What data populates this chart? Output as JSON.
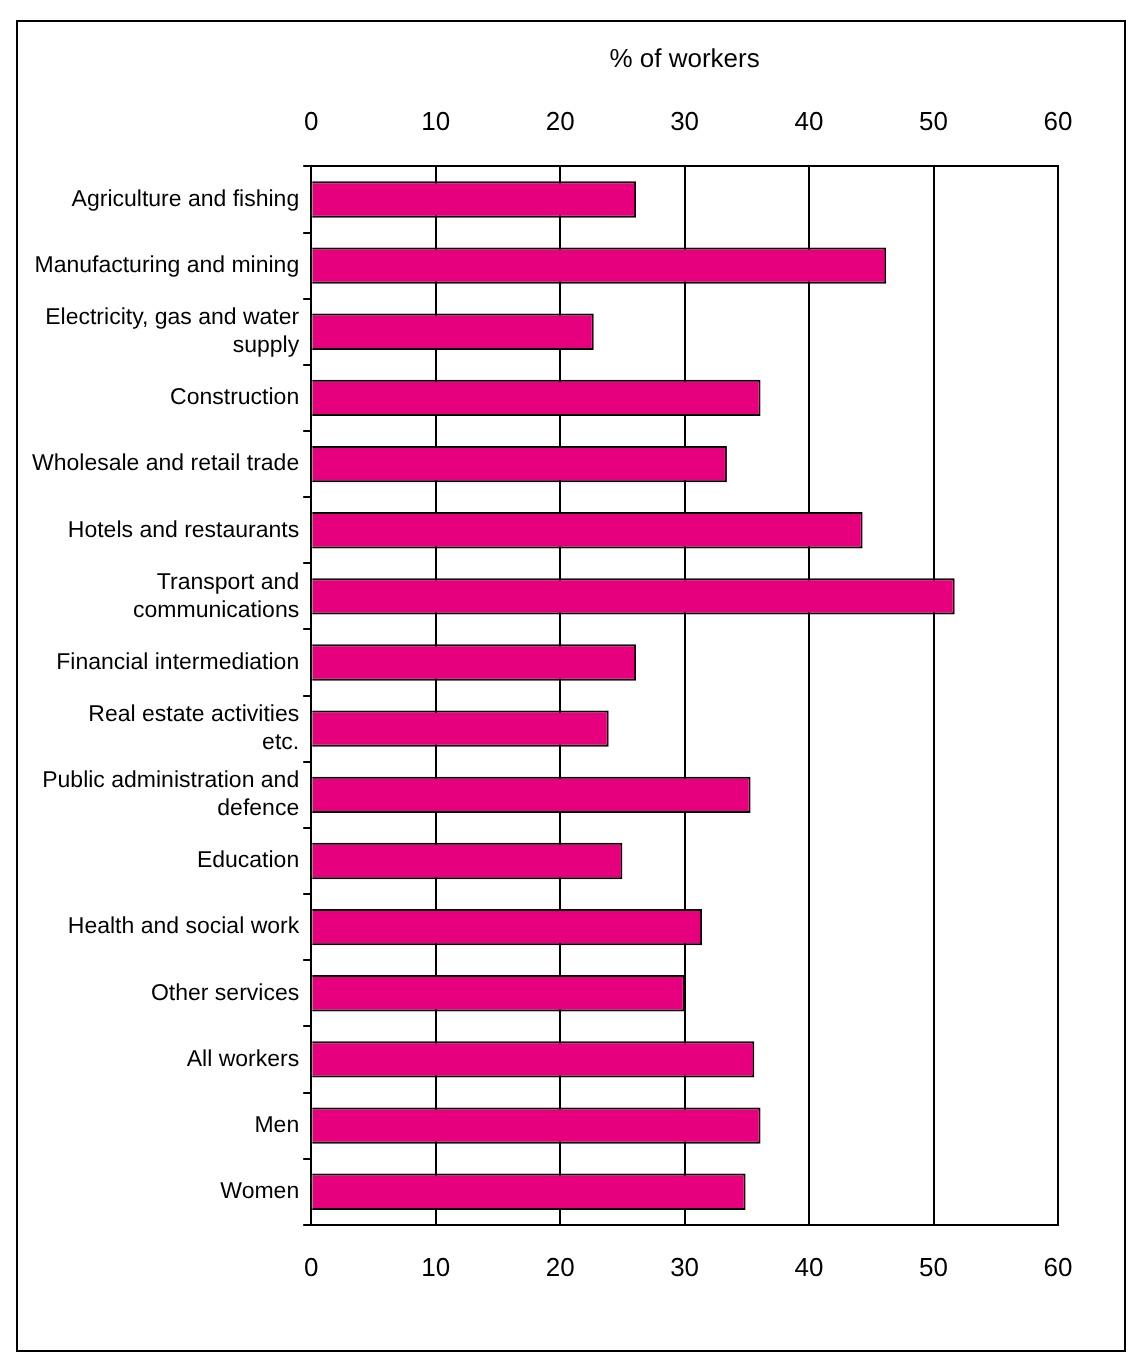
{
  "chart_data": {
    "type": "bar",
    "orientation": "horizontal",
    "x2label": "% of workers",
    "categories": [
      "Agriculture and fishing",
      "Manufacturing and mining",
      "Electricity, gas and water supply",
      "Construction",
      "Wholesale and retail trade",
      "Hotels and restaurants",
      "Transport and communications",
      "Financial intermediation",
      "Real estate activities etc.",
      "Public administration and defence",
      "Education",
      "Health and social work",
      "Other services",
      "All workers",
      "Men",
      "Women"
    ],
    "values": [
      26.1,
      46.2,
      22.7,
      36.1,
      33.4,
      44.3,
      51.7,
      26.1,
      23.9,
      35.3,
      25.0,
      31.4,
      30.0,
      35.6,
      36.1,
      34.9
    ],
    "color": "#e6007e",
    "xlim": [
      0,
      60
    ],
    "xticks": [
      0,
      10,
      20,
      30,
      40,
      50,
      60
    ],
    "x2lim": [
      0,
      60
    ],
    "x2ticks": [
      0,
      10,
      20,
      30,
      40,
      50,
      60
    ],
    "grid": "x",
    "legend": false
  }
}
